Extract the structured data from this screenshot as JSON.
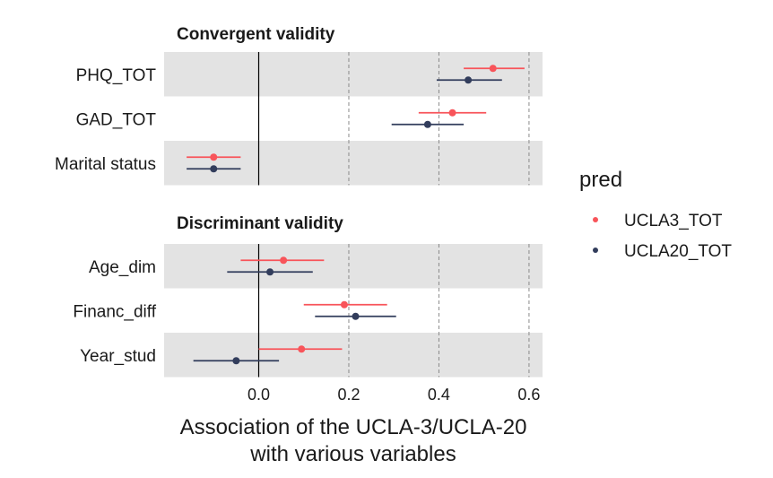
{
  "chart_data": {
    "type": "scatter",
    "subtype": "forest-plot-with-confidence-intervals",
    "xlabel_lines": [
      "Association of the UCLA-3/UCLA-20",
      "with various variables"
    ],
    "xlim": [
      -0.21,
      0.63
    ],
    "x_ticks": [
      0.0,
      0.2,
      0.4,
      0.6
    ],
    "x_tick_labels": [
      "0.0",
      "0.2",
      "0.4",
      "0.6"
    ],
    "dashed_vlines": [
      0.2,
      0.4,
      0.6
    ],
    "solid_vline": 0.0,
    "legend": {
      "title": "pred",
      "position": "right",
      "entries": [
        {
          "label": "UCLA3_TOT",
          "color": "#F8545A"
        },
        {
          "label": "UCLA20_TOT",
          "color": "#323D5C"
        }
      ]
    },
    "series": [
      {
        "name": "UCLA3_TOT",
        "color": "#F8545A"
      },
      {
        "name": "UCLA20_TOT",
        "color": "#323D5C"
      }
    ],
    "facets": [
      {
        "title": "Convergent validity",
        "rows": [
          {
            "label": "PHQ_TOT",
            "shaded": true,
            "estimates": [
              {
                "series": "UCLA3_TOT",
                "est": 0.52,
                "lo": 0.455,
                "hi": 0.59
              },
              {
                "series": "UCLA20_TOT",
                "est": 0.465,
                "lo": 0.395,
                "hi": 0.54
              }
            ]
          },
          {
            "label": "GAD_TOT",
            "shaded": false,
            "estimates": [
              {
                "series": "UCLA3_TOT",
                "est": 0.43,
                "lo": 0.355,
                "hi": 0.505
              },
              {
                "series": "UCLA20_TOT",
                "est": 0.375,
                "lo": 0.295,
                "hi": 0.455
              }
            ]
          },
          {
            "label": "Marital status",
            "shaded": true,
            "estimates": [
              {
                "series": "UCLA3_TOT",
                "est": -0.1,
                "lo": -0.16,
                "hi": -0.04
              },
              {
                "series": "UCLA20_TOT",
                "est": -0.1,
                "lo": -0.16,
                "hi": -0.04
              }
            ]
          }
        ]
      },
      {
        "title": "Discriminant validity",
        "rows": [
          {
            "label": "Age_dim",
            "shaded": true,
            "estimates": [
              {
                "series": "UCLA3_TOT",
                "est": 0.055,
                "lo": -0.04,
                "hi": 0.145
              },
              {
                "series": "UCLA20_TOT",
                "est": 0.025,
                "lo": -0.07,
                "hi": 0.12
              }
            ]
          },
          {
            "label": "Financ_diff",
            "shaded": false,
            "estimates": [
              {
                "series": "UCLA3_TOT",
                "est": 0.19,
                "lo": 0.1,
                "hi": 0.285
              },
              {
                "series": "UCLA20_TOT",
                "est": 0.215,
                "lo": 0.125,
                "hi": 0.305
              }
            ]
          },
          {
            "label": "Year_stud",
            "shaded": true,
            "estimates": [
              {
                "series": "UCLA3_TOT",
                "est": 0.095,
                "lo": 0.0,
                "hi": 0.185
              },
              {
                "series": "UCLA20_TOT",
                "est": -0.05,
                "lo": -0.145,
                "hi": 0.045
              }
            ]
          }
        ]
      }
    ]
  }
}
